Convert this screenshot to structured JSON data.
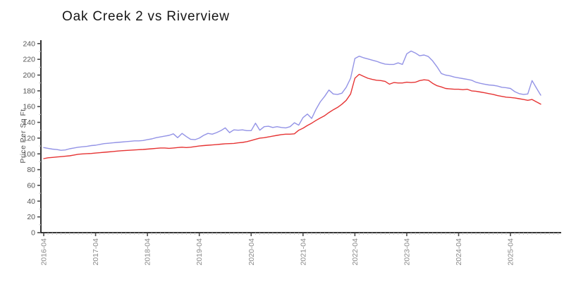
{
  "page": {
    "background": "#ffffff"
  },
  "header": {
    "title": "Oak Creek 2 vs Riverview"
  },
  "chart_data": {
    "type": "line",
    "title": "Oak Creek 2 vs Riverview",
    "xlabel": "",
    "ylabel": "Price Per Sq Ft",
    "ylim": [
      0,
      240
    ],
    "y_tick_step": 20,
    "y_minor_tick_step": 10,
    "grid": false,
    "legend_position": "none",
    "x_start_label": "2016-04",
    "x_frequency": "monthly",
    "points_per_year": 12,
    "x_major_tick_labels": [
      "2016-04",
      "2017-04",
      "2018-04",
      "2019-04",
      "2020-04",
      "2021-04",
      "2022-04",
      "2023-04",
      "2024-04",
      "2025-04"
    ],
    "series": [
      {
        "name": "Oak Creek 2",
        "color": "#9393e6",
        "values": [
          108,
          107,
          106,
          105.5,
          104.5,
          105,
          106.5,
          107.5,
          108.5,
          109,
          109.5,
          110.5,
          111,
          112,
          113,
          113.5,
          114,
          114.5,
          115,
          115.5,
          116,
          116.5,
          116.5,
          117,
          118,
          119,
          120.5,
          121.5,
          122.5,
          123.5,
          125.5,
          120.5,
          126,
          122,
          118.5,
          118,
          120,
          123.5,
          126,
          125,
          127,
          129.5,
          133,
          127,
          130.5,
          130,
          130.5,
          129.5,
          129.5,
          139,
          130,
          134.5,
          135,
          133.5,
          134.5,
          133.5,
          133,
          134.5,
          139.5,
          136.5,
          146,
          150.5,
          145,
          156.5,
          166,
          173,
          181,
          176,
          175.5,
          177,
          184.5,
          196,
          221,
          224,
          222,
          220.5,
          219,
          217.5,
          215.5,
          214,
          213.5,
          213.5,
          215.5,
          213.5,
          227,
          230.5,
          228,
          224.5,
          225.5,
          223.5,
          218,
          210.5,
          202,
          200,
          199,
          197.5,
          196.5,
          195.5,
          194.5,
          193.5,
          191,
          189.5,
          188.5,
          187.5,
          187,
          186,
          184.5,
          184,
          183,
          179,
          176.5,
          175.5,
          176,
          193,
          183.5,
          174.5
        ]
      },
      {
        "name": "Riverview",
        "color": "#e63434",
        "values": [
          94,
          95,
          95.5,
          96,
          96.5,
          97,
          97.5,
          98.5,
          99.5,
          100,
          100.3,
          100.5,
          101,
          101.5,
          102,
          102.5,
          103,
          103.5,
          104,
          104.3,
          104.6,
          105,
          105.3,
          105.6,
          106,
          106.5,
          107,
          107.5,
          107.5,
          107,
          107.5,
          108,
          108.5,
          108,
          108.5,
          109.3,
          110,
          110.5,
          111,
          111.3,
          111.8,
          112.3,
          112.8,
          113,
          113.3,
          114,
          114.5,
          115.5,
          117,
          118.5,
          120,
          120.5,
          121.5,
          122.5,
          123.5,
          124.5,
          125,
          125,
          125.5,
          130,
          132.5,
          136,
          139,
          142.5,
          145.5,
          148.5,
          152.5,
          156,
          159,
          163,
          168,
          176,
          196,
          201,
          198.5,
          196,
          194.5,
          193.5,
          193,
          192,
          188.5,
          190.5,
          190,
          190,
          191,
          190.5,
          191,
          193,
          194,
          193.5,
          189.5,
          186.5,
          185,
          183,
          182.5,
          182,
          182,
          181.5,
          182,
          180,
          179.5,
          178.5,
          177.5,
          176.5,
          175.5,
          174,
          173,
          172,
          171.5,
          171,
          170,
          169,
          168,
          169,
          166,
          163
        ]
      }
    ]
  },
  "colors": {
    "axis": "#1a1a1a",
    "major_tick": "#4a4a4a",
    "minor_tick": "#c4c4c4",
    "y_tick_label": "#555555",
    "x_tick_label": "#8a8a8a",
    "title_text": "#161616"
  }
}
